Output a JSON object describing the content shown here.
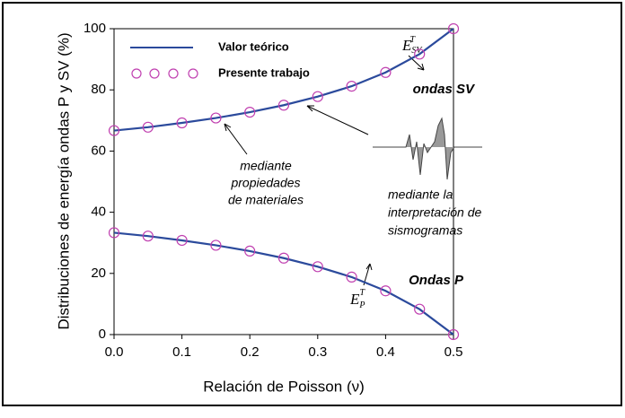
{
  "chart_data": {
    "type": "line",
    "x_label": "Relación de Poisson (ν)",
    "y_label": "Distribuciones de energía ondas P y SV  (%)",
    "x": [
      0,
      0.05,
      0.1,
      0.15,
      0.2,
      0.25,
      0.3,
      0.35,
      0.4,
      0.45,
      0.5
    ],
    "series": [
      {
        "name": "Valor teórico",
        "style": "line",
        "color": "#2b4a9c",
        "values": [
          66.7,
          67.8,
          69.2,
          70.8,
          72.7,
          75.0,
          77.8,
          81.2,
          85.7,
          91.7,
          100
        ]
      },
      {
        "style": "line",
        "color": "#2b4a9c",
        "values": [
          33.3,
          32.2,
          30.8,
          29.2,
          27.3,
          25.0,
          22.2,
          18.8,
          14.3,
          8.3,
          0
        ]
      },
      {
        "name": "Presente trabajo",
        "style": "marker",
        "color": "#c040b0",
        "values": [
          66.7,
          67.8,
          69.2,
          70.8,
          72.7,
          75.0,
          77.8,
          81.2,
          85.7,
          91.7,
          100
        ]
      },
      {
        "style": "marker",
        "color": "#c040b0",
        "values": [
          33.3,
          32.2,
          30.8,
          29.2,
          27.3,
          25.0,
          22.2,
          18.8,
          14.3,
          8.3,
          0
        ]
      }
    ],
    "xlim": [
      0,
      0.5
    ],
    "xticks": [
      {
        "value": 0,
        "label": "0.0"
      },
      0.1,
      0.2,
      0.3,
      0.4,
      0.5
    ],
    "ylim": [
      0,
      100
    ],
    "yticks": [
      0,
      20,
      40,
      60,
      80,
      100
    ],
    "annotations": {
      "sv_label": "ondas SV",
      "p_label": "Ondas P",
      "materials": [
        "mediante",
        "propiedades",
        "de materiales"
      ],
      "seismograms": [
        "mediante la",
        "interpretación de",
        "sismogramas"
      ],
      "e_sv": {
        "base": "E",
        "sub": "SV",
        "sup": "T"
      },
      "e_p": {
        "base": "E",
        "sub": "P",
        "sup": "T"
      }
    }
  }
}
